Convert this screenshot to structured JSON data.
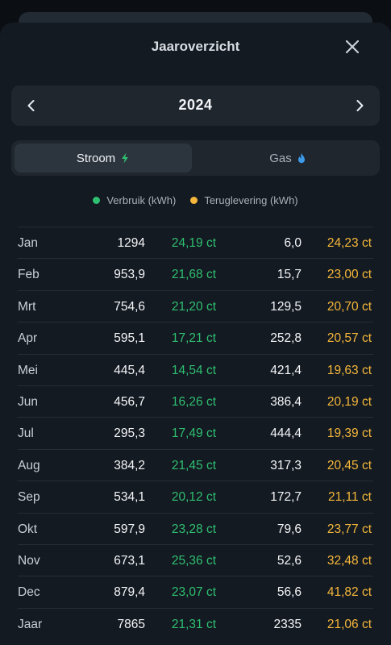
{
  "header": {
    "title": "Jaaroverzicht"
  },
  "year_nav": {
    "year": "2024"
  },
  "tabs": [
    {
      "label": "Stroom",
      "active": true,
      "icon": "lightning-icon"
    },
    {
      "label": "Gas",
      "active": false,
      "icon": "flame-icon"
    }
  ],
  "legend": [
    {
      "label": "Verbruik (kWh)",
      "color": "#2fbf71"
    },
    {
      "label": "Teruglevering (kWh)",
      "color": "#f5b73b"
    }
  ],
  "colors": {
    "green": "#2fbf71",
    "orange": "#f5b73b",
    "background": "#0b0f14",
    "sheet": "#141a21"
  },
  "rows": [
    {
      "month": "Jan",
      "usage": "1294",
      "usage_price": "24,19 ct",
      "return": "6,0",
      "return_price": "24,23 ct"
    },
    {
      "month": "Feb",
      "usage": "953,9",
      "usage_price": "21,68 ct",
      "return": "15,7",
      "return_price": "23,00 ct"
    },
    {
      "month": "Mrt",
      "usage": "754,6",
      "usage_price": "21,20 ct",
      "return": "129,5",
      "return_price": "20,70 ct"
    },
    {
      "month": "Apr",
      "usage": "595,1",
      "usage_price": "17,21 ct",
      "return": "252,8",
      "return_price": "20,57 ct"
    },
    {
      "month": "Mei",
      "usage": "445,4",
      "usage_price": "14,54 ct",
      "return": "421,4",
      "return_price": "19,63 ct"
    },
    {
      "month": "Jun",
      "usage": "456,7",
      "usage_price": "16,26 ct",
      "return": "386,4",
      "return_price": "20,19 ct"
    },
    {
      "month": "Jul",
      "usage": "295,3",
      "usage_price": "17,49 ct",
      "return": "444,4",
      "return_price": "19,39 ct"
    },
    {
      "month": "Aug",
      "usage": "384,2",
      "usage_price": "21,45 ct",
      "return": "317,3",
      "return_price": "20,45 ct"
    },
    {
      "month": "Sep",
      "usage": "534,1",
      "usage_price": "20,12 ct",
      "return": "172,7",
      "return_price": "21,11 ct"
    },
    {
      "month": "Okt",
      "usage": "597,9",
      "usage_price": "23,28 ct",
      "return": "79,6",
      "return_price": "23,77 ct"
    },
    {
      "month": "Nov",
      "usage": "673,1",
      "usage_price": "25,36 ct",
      "return": "52,6",
      "return_price": "32,48 ct"
    },
    {
      "month": "Dec",
      "usage": "879,4",
      "usage_price": "23,07 ct",
      "return": "56,6",
      "return_price": "41,82 ct"
    },
    {
      "month": "Jaar",
      "usage": "7865",
      "usage_price": "21,31 ct",
      "return": "2335",
      "return_price": "21,06 ct"
    }
  ]
}
